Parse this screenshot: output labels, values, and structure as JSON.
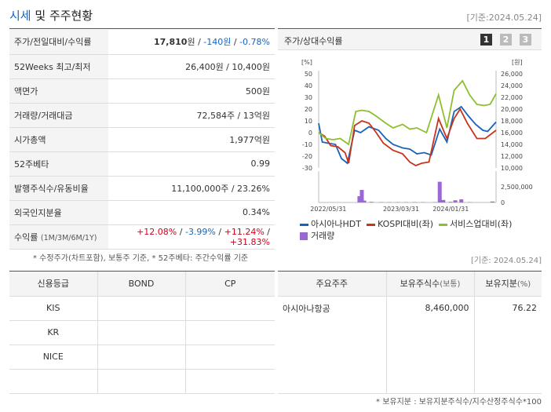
{
  "header": {
    "title_main": "시세",
    "title_rest": " 및 주주현황",
    "base_date": "[기준:2024.05.24]"
  },
  "summary": [
    {
      "key": "주가/전일대비/수익률",
      "price": "17,810",
      "unit": "원",
      "sep": " / ",
      "change": "-140",
      "change_unit": "원",
      "sep2": " / ",
      "rate": "-0.78%"
    },
    {
      "key": "52Weeks 최고/최저",
      "value": "26,400원 / 10,400원"
    },
    {
      "key": "액면가",
      "value": "500원"
    },
    {
      "key": "거래량/거래대금",
      "value": "72,584주 / 13억원"
    },
    {
      "key": "시가총액",
      "value": "1,977억원"
    },
    {
      "key": "52주베타",
      "value": "0.99"
    },
    {
      "key": "발행주식수/유동비율",
      "value": "11,100,000주 / 23.26%"
    },
    {
      "key": "외국인지분율",
      "value": "0.34%"
    },
    {
      "key": "수익률",
      "key_sub": "(1M/3M/6M/1Y)",
      "r1": "+12.08%",
      "r2": "-3.99%",
      "r3": "+11.24%",
      "r4": "+31.83%",
      "slash": "/"
    }
  ],
  "chart_panel": {
    "title": "주가/상대수익률",
    "pages": [
      "1",
      "2",
      "3"
    ]
  },
  "chart_data": {
    "type": "line",
    "x": [
      "2022/05",
      "2022/07",
      "2022/09",
      "2022/11",
      "2023/01",
      "2023/03",
      "2023/05",
      "2023/07",
      "2023/09",
      "2023/11",
      "2024/01",
      "2024/03",
      "2024/05"
    ],
    "x_ticks": [
      "2022/05/31",
      "2023/03/31",
      "2024/01/31"
    ],
    "left_axis": {
      "unit": "[%]",
      "ticks": [
        "50",
        "40",
        "30",
        "20",
        "10",
        "0",
        "-10",
        "-20",
        "-30"
      ],
      "ylim": [
        -30,
        50
      ]
    },
    "right_axis": {
      "unit": "[원]",
      "ticks": [
        "26,000",
        "24,000",
        "22,000",
        "20,000",
        "18,000",
        "16,000",
        "14,000",
        "12,000",
        "10,000"
      ],
      "ylim": [
        10000,
        26000
      ]
    },
    "volume_axis": {
      "ticks": [
        "2,500,000",
        "0"
      ],
      "ylim": [
        0,
        5000000
      ]
    },
    "series": [
      {
        "name": "아시아나HDT",
        "color": "#1a63b8",
        "axis": "left",
        "points": [
          [
            0,
            8
          ],
          [
            3,
            -8
          ],
          [
            8,
            -9
          ],
          [
            14,
            -10
          ],
          [
            19,
            -22
          ],
          [
            24,
            -26
          ],
          [
            30,
            2
          ],
          [
            35,
            0
          ],
          [
            42,
            5
          ],
          [
            50,
            2
          ],
          [
            56,
            -5
          ],
          [
            62,
            -10
          ],
          [
            70,
            -13
          ],
          [
            76,
            -14
          ],
          [
            82,
            -18
          ],
          [
            88,
            -17
          ],
          [
            94,
            -19
          ],
          [
            101,
            3
          ],
          [
            107,
            -8
          ],
          [
            113,
            18
          ],
          [
            119,
            22
          ],
          [
            125,
            14
          ],
          [
            131,
            7
          ],
          [
            137,
            2
          ],
          [
            141,
            1
          ],
          [
            148,
            9
          ]
        ]
      },
      {
        "name": "KOSPI대비(좌)",
        "color": "#c8341c",
        "axis": "left",
        "points": [
          [
            0,
            0
          ],
          [
            5,
            -3
          ],
          [
            10,
            -11
          ],
          [
            16,
            -12
          ],
          [
            22,
            -17
          ],
          [
            25,
            -26
          ],
          [
            30,
            6
          ],
          [
            36,
            10
          ],
          [
            42,
            8
          ],
          [
            48,
            0
          ],
          [
            54,
            -9
          ],
          [
            62,
            -15
          ],
          [
            70,
            -18
          ],
          [
            76,
            -25
          ],
          [
            81,
            -28
          ],
          [
            86,
            -26
          ],
          [
            92,
            -25
          ],
          [
            100,
            12
          ],
          [
            107,
            -5
          ],
          [
            113,
            12
          ],
          [
            118,
            20
          ],
          [
            124,
            8
          ],
          [
            132,
            -5
          ],
          [
            139,
            -5
          ],
          [
            148,
            2
          ]
        ]
      },
      {
        "name": "서비스업대비(좌)",
        "color": "#8dbf2f",
        "axis": "left",
        "points": [
          [
            0,
            0
          ],
          [
            6,
            -5
          ],
          [
            12,
            -6
          ],
          [
            18,
            -5
          ],
          [
            25,
            -10
          ],
          [
            31,
            18
          ],
          [
            36,
            19
          ],
          [
            42,
            18
          ],
          [
            48,
            14
          ],
          [
            56,
            8
          ],
          [
            62,
            4
          ],
          [
            70,
            7
          ],
          [
            76,
            3
          ],
          [
            82,
            4
          ],
          [
            90,
            0
          ],
          [
            100,
            32
          ],
          [
            107,
            4
          ],
          [
            113,
            36
          ],
          [
            120,
            44
          ],
          [
            126,
            32
          ],
          [
            132,
            24
          ],
          [
            138,
            23
          ],
          [
            143,
            24
          ],
          [
            148,
            33
          ]
        ]
      }
    ],
    "volume": {
      "name": "거래량",
      "color": "#9b66d6",
      "bars": [
        [
          34,
          1000000
        ],
        [
          36,
          2000000
        ],
        [
          38,
          300000
        ],
        [
          44,
          100000
        ],
        [
          52,
          50000
        ],
        [
          59,
          50000
        ],
        [
          66,
          50000
        ],
        [
          73,
          50000
        ],
        [
          80,
          50000
        ],
        [
          87,
          50000
        ],
        [
          97,
          50000
        ],
        [
          101,
          3300000
        ],
        [
          104,
          400000
        ],
        [
          110,
          100000
        ],
        [
          114,
          350000
        ],
        [
          119,
          500000
        ],
        [
          126,
          50000
        ],
        [
          145,
          150000
        ]
      ]
    }
  },
  "legend": [
    "아시아나HDT",
    "KOSPI대비(좌)",
    "서비스업대비(좌)",
    "거래량"
  ],
  "notes": {
    "left": "* 수정주가(차트포함), 보통주 기준, * 52주베타: 주간수익률 기준",
    "right_date": "[기준: 2024.05.24]",
    "footer": "* 보유지분 : 보유지분주식수/지수산정주식수*100"
  },
  "credit_table": {
    "headers": [
      "신용등급",
      "BOND",
      "CP"
    ],
    "rows": [
      [
        "KIS",
        "",
        ""
      ],
      [
        "KR",
        "",
        ""
      ],
      [
        "NICE",
        "",
        ""
      ],
      [
        "",
        "",
        ""
      ]
    ]
  },
  "holder_table": {
    "headers": [
      "주요주주",
      "보유주식수",
      "(보통)",
      "보유지분",
      "(%)"
    ],
    "rows": [
      [
        "아시아나항공",
        "8,460,000",
        "76.22"
      ],
      [
        "",
        "",
        ""
      ],
      [
        "",
        "",
        ""
      ],
      [
        "",
        "",
        ""
      ]
    ]
  }
}
